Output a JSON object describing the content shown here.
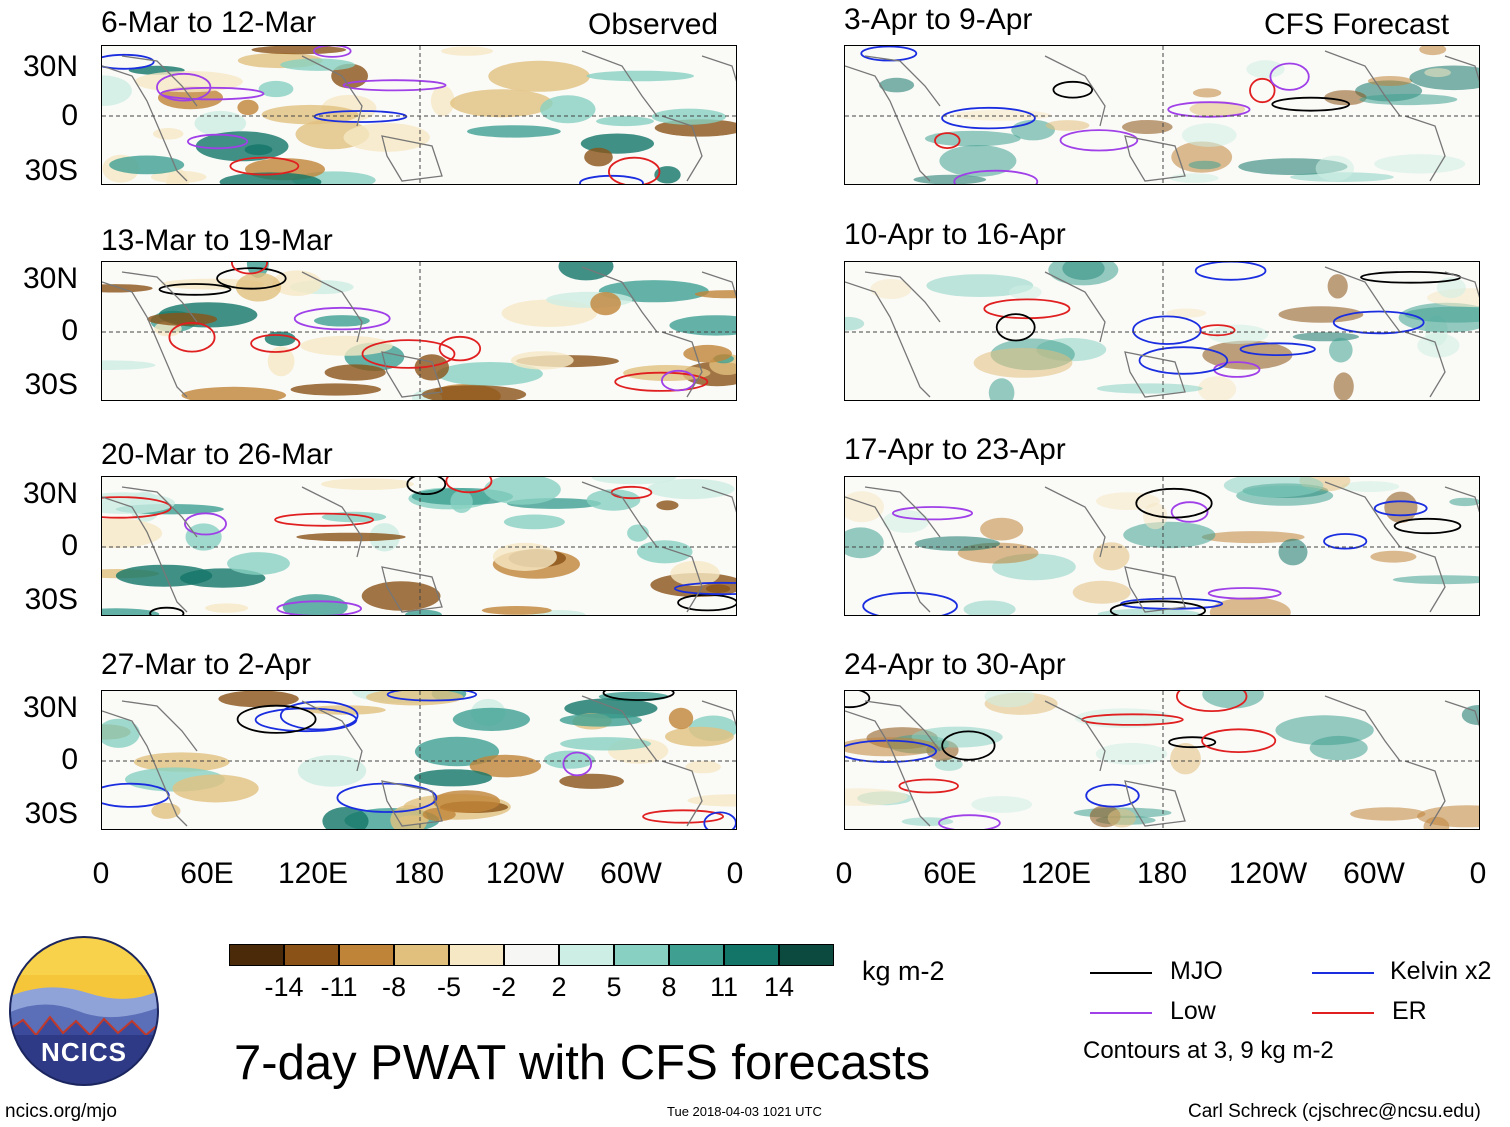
{
  "panels_left": [
    {
      "title": "6-Mar to 12-Mar",
      "tag": "Observed"
    },
    {
      "title": "13-Mar to 19-Mar"
    },
    {
      "title": "20-Mar to 26-Mar"
    },
    {
      "title": "27-Mar to 2-Apr"
    }
  ],
  "panels_right": [
    {
      "title": "3-Apr to 9-Apr",
      "tag": "CFS Forecast"
    },
    {
      "title": "10-Apr to 16-Apr"
    },
    {
      "title": "17-Apr to 23-Apr"
    },
    {
      "title": "24-Apr to 30-Apr"
    }
  ],
  "lat_labels": [
    "30N",
    "0",
    "30S"
  ],
  "lon_labels": [
    "0",
    "60E",
    "120E",
    "180",
    "120W",
    "60W",
    "0"
  ],
  "colorbar": {
    "colors": [
      "#4a2a08",
      "#8a5216",
      "#c08438",
      "#e1c07e",
      "#f6e8c4",
      "#f6f6f4",
      "#cdeee4",
      "#88d1c2",
      "#3fa092",
      "#137568",
      "#0c4a40"
    ],
    "ticks": [
      "-14",
      "-11",
      "-8",
      "-5",
      "-2",
      "2",
      "5",
      "8",
      "11",
      "14"
    ],
    "unit": "kg m-2"
  },
  "legend": {
    "items": [
      {
        "label": "MJO",
        "color": "#000000"
      },
      {
        "label": "Kelvin x2",
        "color": "#1a2ee0"
      },
      {
        "label": "Low",
        "color": "#a040e8"
      },
      {
        "label": "ER",
        "color": "#e02020"
      }
    ],
    "note": "Contours at 3, 9 kg m-2"
  },
  "title": "7-day PWAT with CFS forecasts",
  "logo_text": "NCICS",
  "footer": {
    "url": "ncics.org/mjo",
    "timestamp": "Tue 2018-04-03 1021 UTC",
    "credit": "Carl Schreck (cjschrec@ncsu.edu)"
  }
}
